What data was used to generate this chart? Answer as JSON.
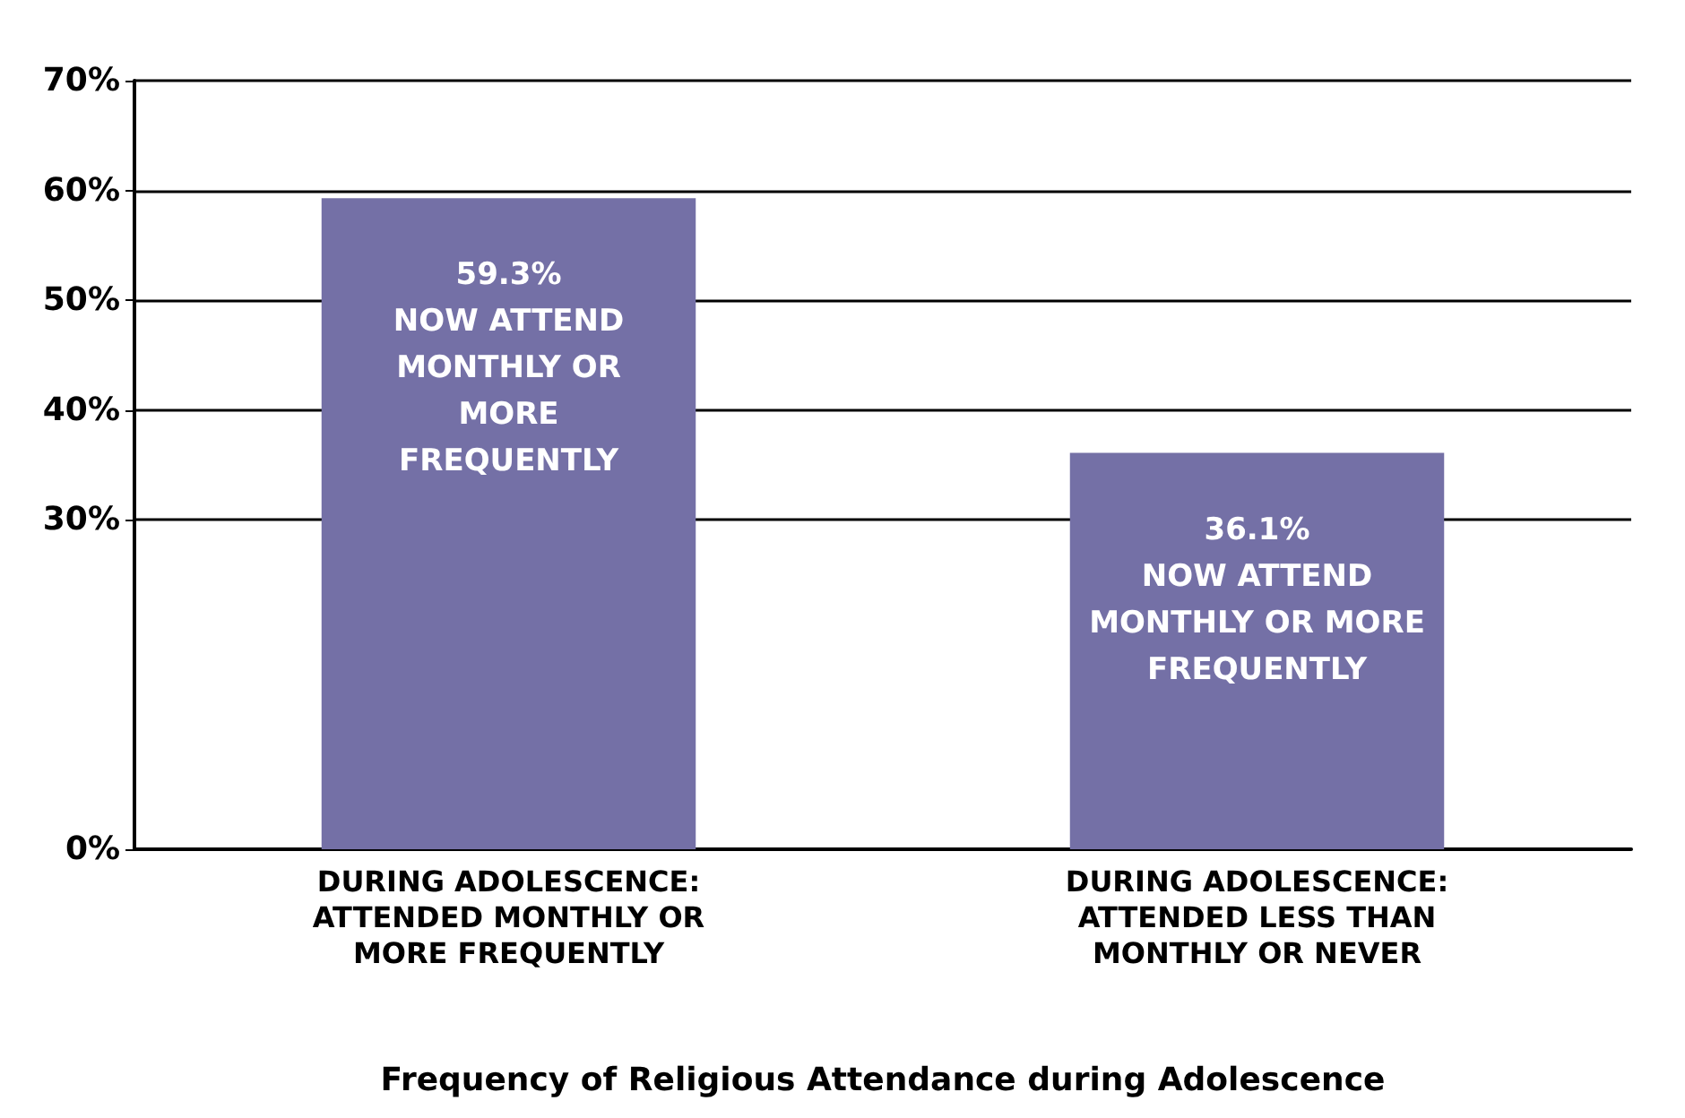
{
  "chart_data": {
    "type": "bar",
    "xlabel": "Frequency of Religious Attendance during Adolescence",
    "categories": [
      "DURING ADOLESCENCE:\nATTENDED MONTHLY OR\nMORE FREQUENTLY",
      "DURING ADOLESCENCE:\nATTENDED LESS THAN\nMONTHLY OR NEVER"
    ],
    "values": [
      59.3,
      36.1
    ],
    "value_labels": [
      "59.3%\nNOW ATTEND\nMONTHLY OR\nMORE\nFREQUENTLY",
      "36.1%\nNOW ATTEND\nMONTHLY OR MORE\nFREQUENTLY"
    ],
    "color": "#7470a6",
    "ylim": [
      0,
      70
    ],
    "yticks": [
      {
        "value": 0,
        "label": "0%"
      },
      {
        "value": 30,
        "label": "30%"
      },
      {
        "value": 40,
        "label": "40%"
      },
      {
        "value": 50,
        "label": "50%"
      },
      {
        "value": 60,
        "label": "60%"
      },
      {
        "value": 70,
        "label": "70%"
      }
    ],
    "grid": true
  }
}
